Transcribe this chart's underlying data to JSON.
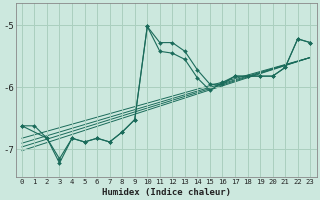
{
  "xlabel": "Humidex (Indice chaleur)",
  "background_color": "#cce8de",
  "grid_color": "#aacfbf",
  "line_color": "#1a6b5a",
  "xlim": [
    -0.5,
    23.5
  ],
  "ylim": [
    -7.45,
    -4.65
  ],
  "yticks": [
    -7,
    -6,
    -5
  ],
  "xticks": [
    0,
    1,
    2,
    3,
    4,
    5,
    6,
    7,
    8,
    9,
    10,
    11,
    12,
    13,
    14,
    15,
    16,
    17,
    18,
    19,
    20,
    21,
    22,
    23
  ],
  "series1_x": [
    0,
    1,
    2,
    3,
    4,
    5,
    6,
    7,
    8,
    9,
    10,
    11,
    12,
    13,
    14,
    15,
    16,
    17,
    18,
    19,
    20,
    21,
    22,
    23
  ],
  "series1_y": [
    -6.62,
    -6.62,
    -6.82,
    -7.15,
    -6.82,
    -6.88,
    -6.82,
    -6.88,
    -6.72,
    -6.52,
    -5.02,
    -5.28,
    -5.28,
    -5.42,
    -5.72,
    -5.95,
    -5.95,
    -5.82,
    -5.82,
    -5.82,
    -5.82,
    -5.68,
    -5.22,
    -5.28
  ],
  "series2_x": [
    0,
    2,
    3,
    4,
    5,
    6,
    7,
    8,
    9,
    10,
    11,
    12,
    13,
    14,
    15,
    16,
    17,
    18,
    19,
    20,
    21,
    22,
    23
  ],
  "series2_y": [
    -6.62,
    -6.82,
    -7.22,
    -6.82,
    -6.88,
    -6.82,
    -6.88,
    -6.72,
    -6.52,
    -5.02,
    -5.42,
    -5.45,
    -5.55,
    -5.85,
    -6.05,
    -5.92,
    -5.82,
    -5.82,
    -5.82,
    -5.82,
    -5.68,
    -5.22,
    -5.28
  ],
  "trend1_x": [
    0,
    23
  ],
  "trend1_y": [
    -6.82,
    -5.52
  ],
  "trend2_x": [
    0,
    23
  ],
  "trend2_y": [
    -6.9,
    -5.52
  ],
  "trend3_x": [
    0,
    23
  ],
  "trend3_y": [
    -6.96,
    -5.52
  ],
  "trend4_x": [
    0,
    23
  ],
  "trend4_y": [
    -7.02,
    -5.52
  ]
}
